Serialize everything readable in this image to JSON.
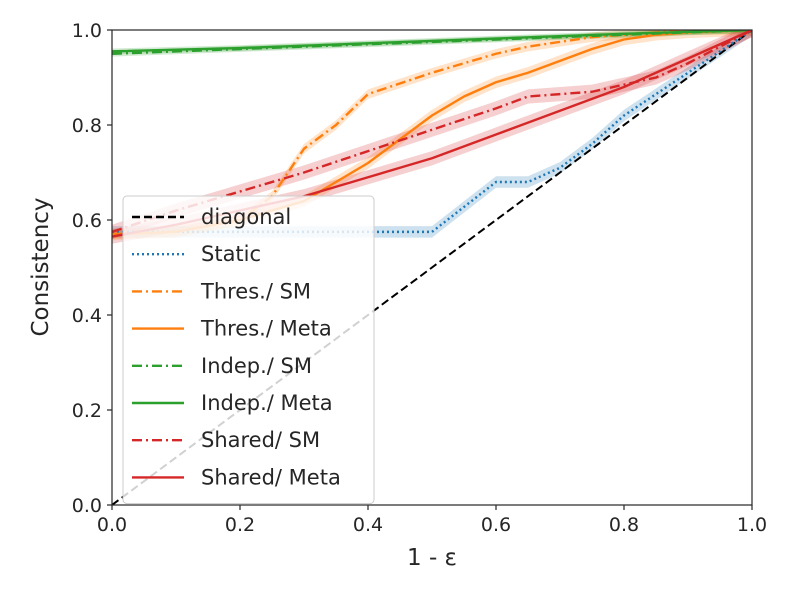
{
  "chart_data": {
    "type": "line",
    "title": "",
    "xlabel": "1 - ε",
    "ylabel": "Consistency",
    "xlim": [
      0,
      1
    ],
    "ylim": [
      0,
      1
    ],
    "x_ticks": [
      "0.0",
      "0.2",
      "0.4",
      "0.6",
      "0.8",
      "1.0"
    ],
    "y_ticks": [
      "0.0",
      "0.2",
      "0.4",
      "0.6",
      "0.8",
      "1.0"
    ],
    "grid": false,
    "legend_position": "lower-left",
    "series": [
      {
        "name": "diagonal",
        "color": "#000000",
        "style": "dashed",
        "x": [
          0.0,
          1.0
        ],
        "y": [
          0.0,
          1.0
        ],
        "band": 0
      },
      {
        "name": "Static",
        "color": "#1f77b4",
        "style": "dotted",
        "x": [
          0.0,
          0.1,
          0.2,
          0.3,
          0.4,
          0.5,
          0.6,
          0.65,
          0.7,
          0.75,
          0.8,
          0.9,
          1.0
        ],
        "y": [
          0.575,
          0.575,
          0.575,
          0.575,
          0.575,
          0.575,
          0.68,
          0.68,
          0.71,
          0.76,
          0.82,
          0.91,
          1.0
        ],
        "band": 0.012
      },
      {
        "name": "Thres./ SM",
        "color": "#ff7f0e",
        "style": "dashdot",
        "x": [
          0.0,
          0.1,
          0.2,
          0.25,
          0.3,
          0.35,
          0.4,
          0.5,
          0.6,
          0.65,
          0.7,
          0.75,
          0.8,
          0.85,
          0.9,
          1.0
        ],
        "y": [
          0.57,
          0.575,
          0.6,
          0.65,
          0.75,
          0.8,
          0.865,
          0.91,
          0.95,
          0.965,
          0.975,
          0.985,
          0.99,
          0.995,
          1.0,
          1.0
        ],
        "band": 0.01
      },
      {
        "name": "Thres./ Meta",
        "color": "#ff7f0e",
        "style": "solid",
        "x": [
          0.0,
          0.1,
          0.2,
          0.3,
          0.35,
          0.4,
          0.45,
          0.5,
          0.55,
          0.6,
          0.65,
          0.7,
          0.75,
          0.8,
          0.85,
          0.9,
          1.0
        ],
        "y": [
          0.57,
          0.575,
          0.6,
          0.64,
          0.68,
          0.72,
          0.77,
          0.82,
          0.86,
          0.89,
          0.91,
          0.935,
          0.96,
          0.98,
          0.99,
          0.995,
          1.0
        ],
        "band": 0.012
      },
      {
        "name": "Indep./ SM",
        "color": "#2ca02c",
        "style": "dashdot",
        "x": [
          0.0,
          0.2,
          0.4,
          0.6,
          0.8,
          1.0
        ],
        "y": [
          0.95,
          0.96,
          0.97,
          0.98,
          0.99,
          1.0
        ],
        "band": 0.006
      },
      {
        "name": "Indep./ Meta",
        "color": "#2ca02c",
        "style": "solid",
        "x": [
          0.0,
          0.2,
          0.4,
          0.6,
          0.8,
          1.0
        ],
        "y": [
          0.955,
          0.962,
          0.972,
          0.982,
          0.992,
          1.0
        ],
        "band": 0.006
      },
      {
        "name": "Shared/ SM",
        "color": "#d62728",
        "style": "dashdot",
        "x": [
          0.0,
          0.1,
          0.2,
          0.3,
          0.4,
          0.5,
          0.6,
          0.65,
          0.7,
          0.75,
          0.8,
          0.85,
          0.9,
          1.0
        ],
        "y": [
          0.575,
          0.62,
          0.66,
          0.7,
          0.745,
          0.79,
          0.835,
          0.86,
          0.865,
          0.87,
          0.885,
          0.9,
          0.93,
          1.0
        ],
        "band": 0.015
      },
      {
        "name": "Shared/ Meta",
        "color": "#d62728",
        "style": "solid",
        "x": [
          0.0,
          0.1,
          0.2,
          0.3,
          0.4,
          0.5,
          0.6,
          0.7,
          0.8,
          0.9,
          1.0
        ],
        "y": [
          0.565,
          0.59,
          0.62,
          0.65,
          0.69,
          0.73,
          0.78,
          0.83,
          0.88,
          0.94,
          1.0
        ],
        "band": 0.015
      }
    ]
  }
}
